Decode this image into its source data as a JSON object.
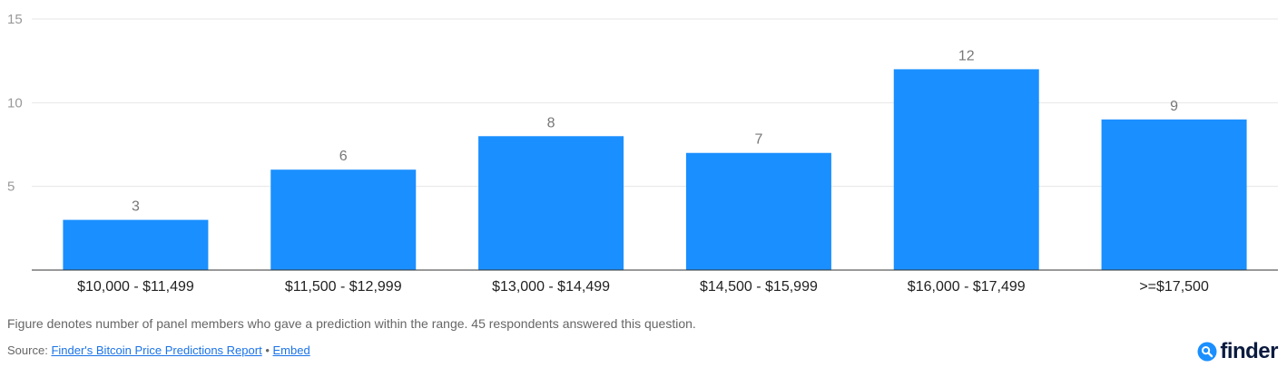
{
  "chart_data": {
    "type": "bar",
    "categories": [
      "$10,000 - $11,499",
      "$11,500 - $12,999",
      "$13,000 - $14,499",
      "$14,500 - $15,999",
      "$16,000 - $17,499",
      ">=$17,500"
    ],
    "values": [
      3,
      6,
      8,
      7,
      12,
      9
    ],
    "data_labels": [
      "3",
      "6",
      "8",
      "7",
      "12",
      "9"
    ],
    "yticks": [
      5,
      10,
      15
    ],
    "ylim": [
      0,
      15
    ],
    "grid": true,
    "legend": "none",
    "bar_color": "#1a8fff",
    "grid_color": "#e6e6e6",
    "axis_color": "#333333",
    "tick_label_color": "#999999",
    "data_label_color": "#777777"
  },
  "note": "Figure denotes number of panel members who gave a prediction within the range. 45 respondents answered this question.",
  "source": {
    "prefix": "Source:",
    "report_link": "Finder's Bitcoin Price Predictions Report",
    "separator": "•",
    "embed_link": "Embed"
  },
  "logo": {
    "text": "finder",
    "icon": "search-icon",
    "color": "#1a8fff"
  }
}
